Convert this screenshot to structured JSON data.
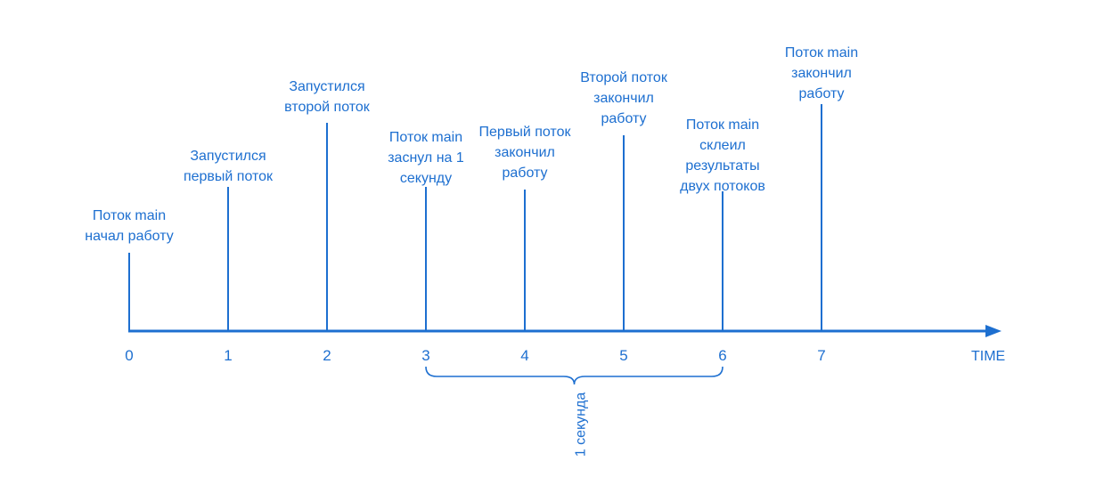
{
  "colors": {
    "primary": "#1d6fd0",
    "background": "#ffffff"
  },
  "axis": {
    "label": "TIME",
    "ticks": [
      "0",
      "1",
      "2",
      "3",
      "4",
      "5",
      "6",
      "7"
    ]
  },
  "events": [
    {
      "t": 0,
      "lines": [
        "Поток main",
        "начал работу"
      ]
    },
    {
      "t": 1,
      "lines": [
        "Запустился",
        "первый поток"
      ]
    },
    {
      "t": 2,
      "lines": [
        "Запустился",
        "второй поток"
      ]
    },
    {
      "t": 3,
      "lines": [
        "Поток main",
        "заснул на 1",
        "секунду"
      ]
    },
    {
      "t": 4,
      "lines": [
        "Первый поток",
        "закончил",
        "работу"
      ]
    },
    {
      "t": 5,
      "lines": [
        "Второй поток",
        "закончил",
        "работу"
      ]
    },
    {
      "t": 6,
      "lines": [
        "Поток main",
        "склеил",
        "результаты",
        "двух потоков"
      ]
    },
    {
      "t": 7,
      "lines": [
        "Поток main",
        "закончил",
        "работу"
      ]
    }
  ],
  "brace": {
    "from": 3,
    "to": 6,
    "label": "1 секунда"
  }
}
